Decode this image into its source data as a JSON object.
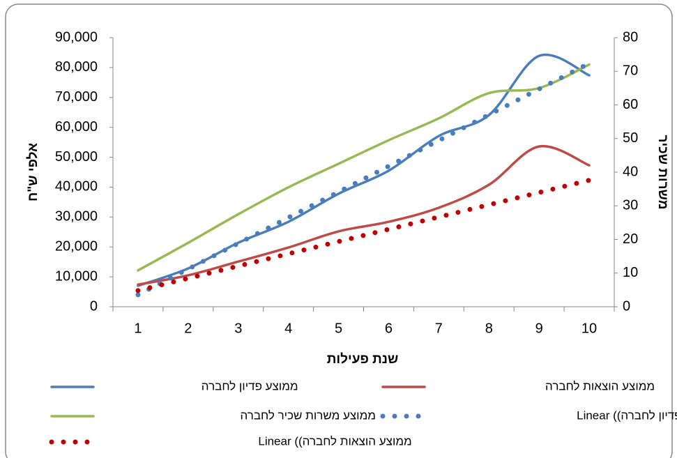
{
  "chart_data": {
    "type": "line",
    "categories": [
      "1",
      "2",
      "3",
      "4",
      "5",
      "6",
      "7",
      "8",
      "9",
      "10"
    ],
    "x_label": "שנת פעילות",
    "y_label": "אלפי ש\"ח",
    "y2_label": "משרות שכיר",
    "ylim": [
      0,
      90000
    ],
    "yticks": [
      0,
      {
        "value": 10000,
        "label": "10,000"
      },
      {
        "value": 20000,
        "label": "20,000"
      },
      {
        "value": 30000,
        "label": "30,000"
      },
      {
        "value": 40000,
        "label": "40,000"
      },
      {
        "value": 50000,
        "label": "50,000"
      },
      {
        "value": 60000,
        "label": "60,000"
      },
      {
        "value": 70000,
        "label": "70,000"
      },
      {
        "value": 80000,
        "label": "80,000"
      },
      {
        "value": 90000,
        "label": "90,000"
      }
    ],
    "y2lim": [
      0,
      80
    ],
    "y2ticks": [
      0,
      10,
      20,
      30,
      40,
      50,
      60,
      70,
      80
    ],
    "series": [
      {
        "name": "ממוצע פדיון לחברה",
        "color": "#4a7ebb",
        "style": "solid",
        "values": [
          7000,
          12800,
          21400,
          28400,
          37800,
          45500,
          57100,
          64100,
          83900,
          77400
        ]
      },
      {
        "name": "ממוצע הוצאות לחברה",
        "color": "#be4b48",
        "style": "solid",
        "values": [
          7400,
          10500,
          15100,
          19800,
          25200,
          28400,
          33100,
          40800,
          53600,
          47300
        ]
      },
      {
        "name": "ממוצע משרות שכיר לחברה",
        "color": "#98b954",
        "style": "solid",
        "axis": "y2",
        "values": [
          10.8,
          19,
          27.5,
          35.5,
          42.5,
          49.5,
          56,
          63.5,
          65,
          72
        ]
      },
      {
        "name": "ממוצע פדיון לחברה)) Linear",
        "color": "#4a7ebb",
        "style": "dotted",
        "values": [
          4000,
          12600,
          21200,
          29800,
          38400,
          47000,
          55600,
          64200,
          72800,
          81400
        ]
      },
      {
        "name": "ממוצע הוצאות לחברה)) Linear",
        "color": "#c00000",
        "style": "dotted",
        "values": [
          5400,
          9500,
          13600,
          17700,
          21800,
          25900,
          30000,
          34100,
          38200,
          42300
        ]
      }
    ]
  }
}
